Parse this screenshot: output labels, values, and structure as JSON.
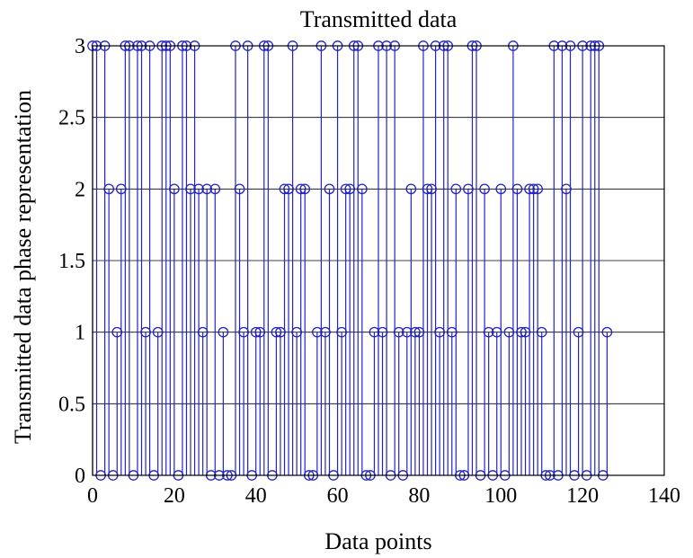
{
  "chart_data": {
    "type": "stem",
    "title": "Transmitted data",
    "xlabel": "Data points",
    "ylabel": "Transmitted data phase representation",
    "xlim": [
      0,
      140
    ],
    "ylim": [
      0,
      3
    ],
    "xticks": [
      0,
      20,
      40,
      60,
      80,
      100,
      120,
      140
    ],
    "yticks": [
      0,
      0.5,
      1,
      1.5,
      2,
      2.5,
      3
    ],
    "xtick_labels": [
      "0",
      "20",
      "40",
      "60",
      "80",
      "100",
      "120",
      "140"
    ],
    "ytick_labels": [
      "0",
      "0.5",
      "1",
      "1.5",
      "2",
      "2.5",
      "3"
    ],
    "grid": true,
    "marker": "circle",
    "color": "#2323c8",
    "x": [
      0,
      1,
      2,
      3,
      4,
      5,
      6,
      7,
      8,
      9,
      10,
      11,
      12,
      13,
      14,
      15,
      16,
      17,
      18,
      19,
      20,
      21,
      22,
      23,
      24,
      25,
      26,
      27,
      28,
      29,
      30,
      31,
      32,
      33,
      34,
      35,
      36,
      37,
      38,
      39,
      40,
      41,
      42,
      43,
      44,
      45,
      46,
      47,
      48,
      49,
      50,
      51,
      52,
      53,
      54,
      55,
      56,
      57,
      58,
      59,
      60,
      61,
      62,
      63,
      64,
      65,
      66,
      67,
      68,
      69,
      70,
      71,
      72,
      73,
      74,
      75,
      76,
      77,
      78,
      79,
      80,
      81,
      82,
      83,
      84,
      85,
      86,
      87,
      88,
      89,
      90,
      91,
      92,
      93,
      94,
      95,
      96,
      97,
      98,
      99,
      100,
      101,
      102,
      103,
      104,
      105,
      106,
      107,
      108,
      109,
      110,
      111,
      112,
      113,
      114,
      115,
      116,
      117,
      118,
      119,
      120,
      121,
      122,
      123,
      124,
      125,
      126
    ],
    "values": [
      3,
      3,
      0,
      3,
      2,
      0,
      1,
      2,
      3,
      3,
      0,
      3,
      3,
      1,
      3,
      0,
      1,
      3,
      3,
      3,
      2,
      0,
      3,
      3,
      2,
      3,
      2,
      1,
      2,
      0,
      2,
      0,
      1,
      0,
      0,
      3,
      2,
      1,
      3,
      0,
      1,
      1,
      3,
      3,
      0,
      1,
      1,
      2,
      2,
      3,
      1,
      2,
      2,
      0,
      0,
      1,
      3,
      1,
      2,
      0,
      3,
      1,
      2,
      2,
      3,
      3,
      2,
      0,
      0,
      1,
      3,
      1,
      3,
      0,
      3,
      1,
      0,
      1,
      2,
      1,
      1,
      3,
      2,
      2,
      3,
      1,
      3,
      3,
      1,
      2,
      0,
      0,
      2,
      3,
      3,
      0,
      2,
      1,
      0,
      1,
      2,
      0,
      1,
      3,
      2,
      1,
      1,
      2,
      2,
      2,
      1,
      0,
      0,
      3,
      0,
      3,
      2,
      3,
      0,
      1,
      3,
      0,
      3,
      3,
      3,
      0,
      1
    ]
  }
}
